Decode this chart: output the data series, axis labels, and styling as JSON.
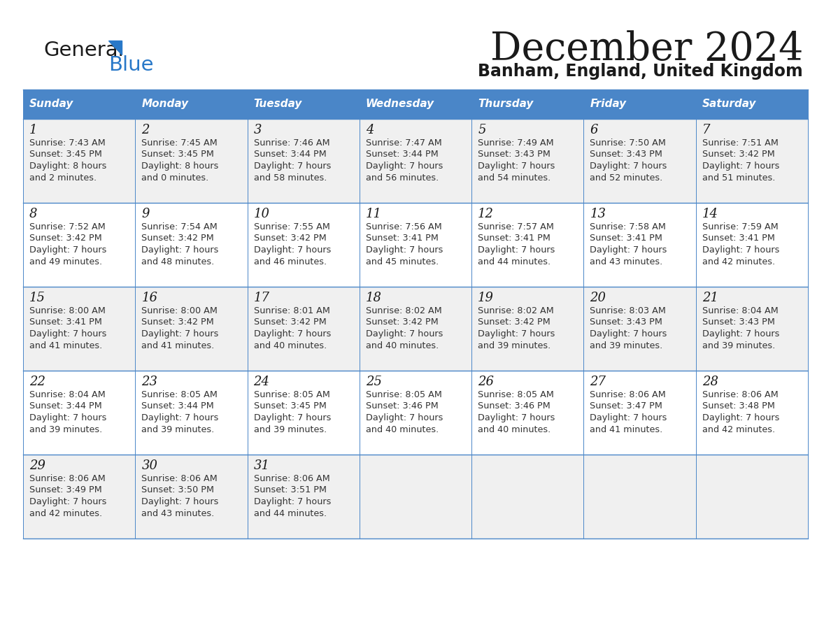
{
  "title": "December 2024",
  "subtitle": "Banham, England, United Kingdom",
  "header_color": "#4a86c8",
  "header_text_color": "#ffffff",
  "row_bg_even": "#f0f0f0",
  "row_bg_odd": "#ffffff",
  "border_color": "#4a86c8",
  "text_color": "#333333",
  "day_names": [
    "Sunday",
    "Monday",
    "Tuesday",
    "Wednesday",
    "Thursday",
    "Friday",
    "Saturday"
  ],
  "weeks": [
    [
      {
        "day": "1",
        "sunrise": "7:43 AM",
        "sunset": "3:45 PM",
        "dl1": "Daylight: 8 hours",
        "dl2": "and 2 minutes."
      },
      {
        "day": "2",
        "sunrise": "7:45 AM",
        "sunset": "3:45 PM",
        "dl1": "Daylight: 8 hours",
        "dl2": "and 0 minutes."
      },
      {
        "day": "3",
        "sunrise": "7:46 AM",
        "sunset": "3:44 PM",
        "dl1": "Daylight: 7 hours",
        "dl2": "and 58 minutes."
      },
      {
        "day": "4",
        "sunrise": "7:47 AM",
        "sunset": "3:44 PM",
        "dl1": "Daylight: 7 hours",
        "dl2": "and 56 minutes."
      },
      {
        "day": "5",
        "sunrise": "7:49 AM",
        "sunset": "3:43 PM",
        "dl1": "Daylight: 7 hours",
        "dl2": "and 54 minutes."
      },
      {
        "day": "6",
        "sunrise": "7:50 AM",
        "sunset": "3:43 PM",
        "dl1": "Daylight: 7 hours",
        "dl2": "and 52 minutes."
      },
      {
        "day": "7",
        "sunrise": "7:51 AM",
        "sunset": "3:42 PM",
        "dl1": "Daylight: 7 hours",
        "dl2": "and 51 minutes."
      }
    ],
    [
      {
        "day": "8",
        "sunrise": "7:52 AM",
        "sunset": "3:42 PM",
        "dl1": "Daylight: 7 hours",
        "dl2": "and 49 minutes."
      },
      {
        "day": "9",
        "sunrise": "7:54 AM",
        "sunset": "3:42 PM",
        "dl1": "Daylight: 7 hours",
        "dl2": "and 48 minutes."
      },
      {
        "day": "10",
        "sunrise": "7:55 AM",
        "sunset": "3:42 PM",
        "dl1": "Daylight: 7 hours",
        "dl2": "and 46 minutes."
      },
      {
        "day": "11",
        "sunrise": "7:56 AM",
        "sunset": "3:41 PM",
        "dl1": "Daylight: 7 hours",
        "dl2": "and 45 minutes."
      },
      {
        "day": "12",
        "sunrise": "7:57 AM",
        "sunset": "3:41 PM",
        "dl1": "Daylight: 7 hours",
        "dl2": "and 44 minutes."
      },
      {
        "day": "13",
        "sunrise": "7:58 AM",
        "sunset": "3:41 PM",
        "dl1": "Daylight: 7 hours",
        "dl2": "and 43 minutes."
      },
      {
        "day": "14",
        "sunrise": "7:59 AM",
        "sunset": "3:41 PM",
        "dl1": "Daylight: 7 hours",
        "dl2": "and 42 minutes."
      }
    ],
    [
      {
        "day": "15",
        "sunrise": "8:00 AM",
        "sunset": "3:41 PM",
        "dl1": "Daylight: 7 hours",
        "dl2": "and 41 minutes."
      },
      {
        "day": "16",
        "sunrise": "8:00 AM",
        "sunset": "3:42 PM",
        "dl1": "Daylight: 7 hours",
        "dl2": "and 41 minutes."
      },
      {
        "day": "17",
        "sunrise": "8:01 AM",
        "sunset": "3:42 PM",
        "dl1": "Daylight: 7 hours",
        "dl2": "and 40 minutes."
      },
      {
        "day": "18",
        "sunrise": "8:02 AM",
        "sunset": "3:42 PM",
        "dl1": "Daylight: 7 hours",
        "dl2": "and 40 minutes."
      },
      {
        "day": "19",
        "sunrise": "8:02 AM",
        "sunset": "3:42 PM",
        "dl1": "Daylight: 7 hours",
        "dl2": "and 39 minutes."
      },
      {
        "day": "20",
        "sunrise": "8:03 AM",
        "sunset": "3:43 PM",
        "dl1": "Daylight: 7 hours",
        "dl2": "and 39 minutes."
      },
      {
        "day": "21",
        "sunrise": "8:04 AM",
        "sunset": "3:43 PM",
        "dl1": "Daylight: 7 hours",
        "dl2": "and 39 minutes."
      }
    ],
    [
      {
        "day": "22",
        "sunrise": "8:04 AM",
        "sunset": "3:44 PM",
        "dl1": "Daylight: 7 hours",
        "dl2": "and 39 minutes."
      },
      {
        "day": "23",
        "sunrise": "8:05 AM",
        "sunset": "3:44 PM",
        "dl1": "Daylight: 7 hours",
        "dl2": "and 39 minutes."
      },
      {
        "day": "24",
        "sunrise": "8:05 AM",
        "sunset": "3:45 PM",
        "dl1": "Daylight: 7 hours",
        "dl2": "and 39 minutes."
      },
      {
        "day": "25",
        "sunrise": "8:05 AM",
        "sunset": "3:46 PM",
        "dl1": "Daylight: 7 hours",
        "dl2": "and 40 minutes."
      },
      {
        "day": "26",
        "sunrise": "8:05 AM",
        "sunset": "3:46 PM",
        "dl1": "Daylight: 7 hours",
        "dl2": "and 40 minutes."
      },
      {
        "day": "27",
        "sunrise": "8:06 AM",
        "sunset": "3:47 PM",
        "dl1": "Daylight: 7 hours",
        "dl2": "and 41 minutes."
      },
      {
        "day": "28",
        "sunrise": "8:06 AM",
        "sunset": "3:48 PM",
        "dl1": "Daylight: 7 hours",
        "dl2": "and 42 minutes."
      }
    ],
    [
      {
        "day": "29",
        "sunrise": "8:06 AM",
        "sunset": "3:49 PM",
        "dl1": "Daylight: 7 hours",
        "dl2": "and 42 minutes."
      },
      {
        "day": "30",
        "sunrise": "8:06 AM",
        "sunset": "3:50 PM",
        "dl1": "Daylight: 7 hours",
        "dl2": "and 43 minutes."
      },
      {
        "day": "31",
        "sunrise": "8:06 AM",
        "sunset": "3:51 PM",
        "dl1": "Daylight: 7 hours",
        "dl2": "and 44 minutes."
      },
      null,
      null,
      null,
      null
    ]
  ]
}
